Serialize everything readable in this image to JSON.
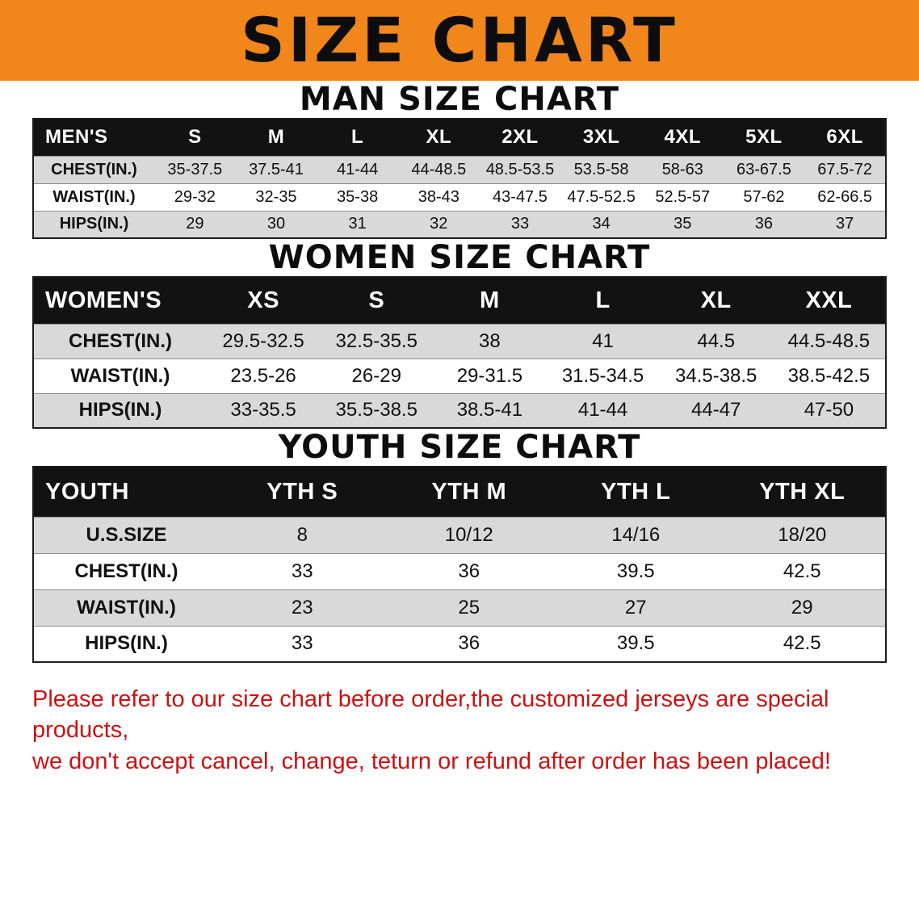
{
  "banner": {
    "title": "SIZE CHART"
  },
  "sections": [
    {
      "title": "MAN SIZE CHART",
      "table": {
        "header": [
          "MEN'S",
          "S",
          "M",
          "L",
          "XL",
          "2XL",
          "3XL",
          "4XL",
          "5XL",
          "6XL"
        ],
        "rows": [
          [
            "CHEST(IN.)",
            "35-37.5",
            "37.5-41",
            "41-44",
            "44-48.5",
            "48.5-53.5",
            "53.5-58",
            "58-63",
            "63-67.5",
            "67.5-72"
          ],
          [
            "WAIST(IN.)",
            "29-32",
            "32-35",
            "35-38",
            "38-43",
            "43-47.5",
            "47.5-52.5",
            "52.5-57",
            "57-62",
            "62-66.5"
          ],
          [
            "HIPS(IN.)",
            "29",
            "30",
            "31",
            "32",
            "33",
            "34",
            "35",
            "36",
            "37"
          ]
        ]
      }
    },
    {
      "title": "WOMEN SIZE CHART",
      "table": {
        "header": [
          "WOMEN'S",
          "XS",
          "S",
          "M",
          "L",
          "XL",
          "XXL"
        ],
        "rows": [
          [
            "CHEST(IN.)",
            "29.5-32.5",
            "32.5-35.5",
            "38",
            "41",
            "44.5",
            "44.5-48.5"
          ],
          [
            "WAIST(IN.)",
            "23.5-26",
            "26-29",
            "29-31.5",
            "31.5-34.5",
            "34.5-38.5",
            "38.5-42.5"
          ],
          [
            "HIPS(IN.)",
            "33-35.5",
            "35.5-38.5",
            "38.5-41",
            "41-44",
            "44-47",
            "47-50"
          ]
        ]
      }
    },
    {
      "title": "YOUTH SIZE CHART",
      "table": {
        "header": [
          "YOUTH",
          "YTH S",
          "YTH M",
          "YTH L",
          "YTH XL"
        ],
        "rows": [
          [
            "U.S.SIZE",
            "8",
            "10/12",
            "14/16",
            "18/20"
          ],
          [
            "CHEST(IN.)",
            "33",
            "36",
            "39.5",
            "42.5"
          ],
          [
            "WAIST(IN.)",
            "23",
            "25",
            "27",
            "29"
          ],
          [
            "HIPS(IN.)",
            "33",
            "36",
            "39.5",
            "42.5"
          ]
        ]
      }
    }
  ],
  "footer": {
    "lines": [
      "Please refer to our size chart before order,the customized jerseys are special products,",
      "we don't accept cancel, change, teturn or refund after order has been placed!"
    ]
  },
  "colors": {
    "banner_bg": "#F1861B",
    "header_bg": "#121212",
    "row_alt": "#D9D9D9",
    "footer_text": "#CC1111"
  }
}
